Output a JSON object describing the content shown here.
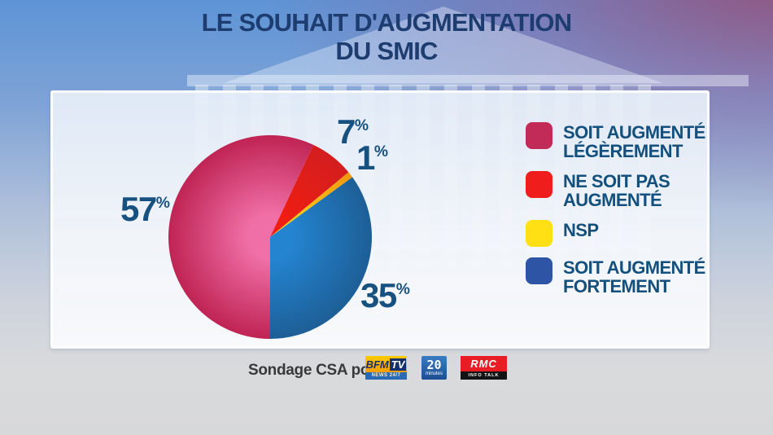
{
  "title": {
    "line1": "LE SOUHAIT D'AUGMENTATION",
    "line2": "DU SMIC"
  },
  "chart_data": {
    "type": "pie",
    "title": "LE SOUHAIT D'AUGMENTATION DU SMIC",
    "units": "percent",
    "percent_symbol": "%",
    "start_angle_deg": 180,
    "direction": "clockwise",
    "legend_position": "right",
    "slices": [
      {
        "label": "SOIT AUGMENTÉ LÉGÈREMENT",
        "value": 57,
        "num": "57",
        "color_center": "#f06fa6",
        "color_edge": "#bf2454"
      },
      {
        "label": "NE SOIT PAS AUGMENTÉ",
        "value": 7,
        "num": "7",
        "color_center": "#f01d12",
        "color_edge": "#d31e1e"
      },
      {
        "label": "NSP",
        "value": 1,
        "num": "1",
        "color_center": "#ffd114",
        "color_edge": "#f0970e"
      },
      {
        "label": "SOIT AUGMENTÉ FORTEMENT",
        "value": 35,
        "num": "35",
        "color_center": "#2484d0",
        "color_edge": "#1d5f97"
      }
    ]
  },
  "legend": {
    "items": [
      {
        "label": "SOIT AUGMENTÉ\nLÉGÈREMENT",
        "swatch": "#c22a58"
      },
      {
        "label": "NE SOIT PAS\nAUGMENTÉ",
        "swatch": "#f01d1d"
      },
      {
        "label": "NSP",
        "swatch": "#ffe014"
      },
      {
        "label": "SOIT AUGMENTÉ\nFORTEMENT",
        "swatch": "#2e55a5"
      }
    ]
  },
  "footer": {
    "caption": "Sondage CSA pour",
    "logos": [
      {
        "name": "BFMTV",
        "main": "BFM",
        "main2": "TV",
        "sub": "NEWS 24/7"
      },
      {
        "name": "20 Minutes",
        "main": "20",
        "sub": "minutes"
      },
      {
        "name": "RMC",
        "main": "RMC",
        "sub": "INFO TALK SPORT"
      }
    ]
  },
  "colors": {
    "title_navy": "#1d3c70",
    "label_navy": "#175180",
    "background_top": "#5d94d6",
    "background_bottom": "#d8d8da",
    "corner_purple": "#96507a",
    "panel": "#eef3f9"
  }
}
